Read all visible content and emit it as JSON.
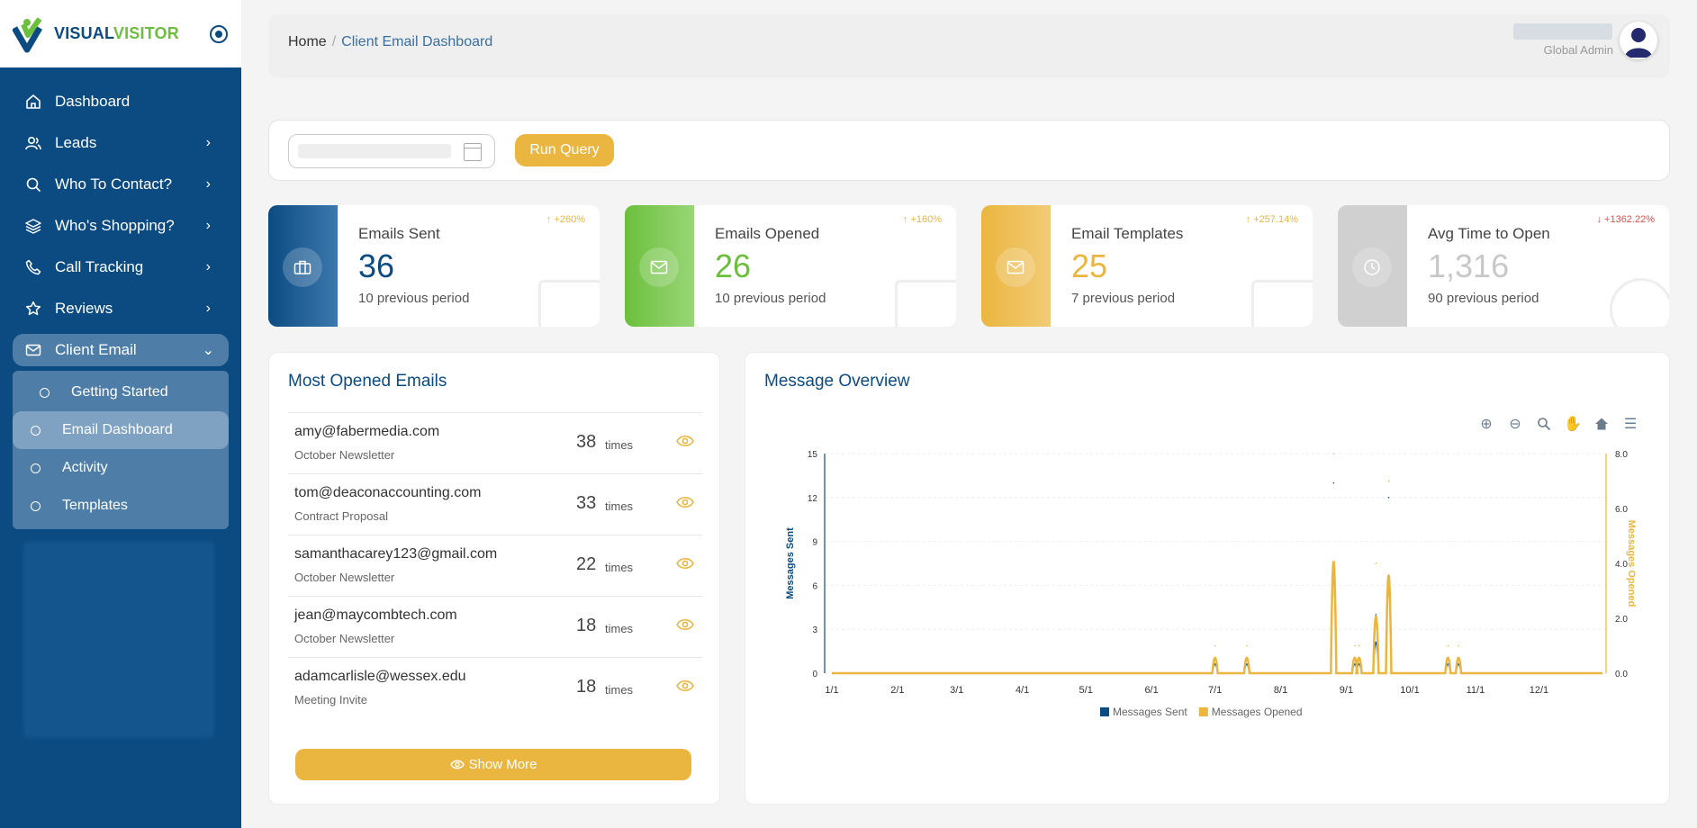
{
  "sidebar": {
    "logo": {
      "part1": "VISUAL",
      "part2": "VISITOR"
    },
    "items": [
      {
        "label": "Dashboard",
        "icon": "home-icon"
      },
      {
        "label": "Leads",
        "icon": "users-icon"
      },
      {
        "label": "Who To Contact?",
        "icon": "search-icon"
      },
      {
        "label": "Who's Shopping?",
        "icon": "layers-icon"
      },
      {
        "label": "Call Tracking",
        "icon": "phone-icon"
      },
      {
        "label": "Reviews",
        "icon": "star-icon"
      },
      {
        "label": "Client Email",
        "icon": "mail-icon"
      }
    ],
    "subitems": [
      {
        "label": "Getting Started"
      },
      {
        "label": "Email Dashboard"
      },
      {
        "label": "Activity"
      },
      {
        "label": "Templates"
      }
    ]
  },
  "header": {
    "breadcrumb_home": "Home",
    "breadcrumb_sep": "/",
    "breadcrumb_current": "Client Email Dashboard",
    "user_role": "Global Admin"
  },
  "query": {
    "run_label": "Run Query"
  },
  "stats": [
    {
      "label": "Emails Sent",
      "value": "36",
      "prev": "10 previous period",
      "delta": "+260%",
      "direction": "up"
    },
    {
      "label": "Emails Opened",
      "value": "26",
      "prev": "10 previous period",
      "delta": "+160%",
      "direction": "up"
    },
    {
      "label": "Email Templates",
      "value": "25",
      "prev": "7 previous period",
      "delta": "+257.14%",
      "direction": "up"
    },
    {
      "label": "Avg Time to Open",
      "value": "1,316",
      "prev": "90 previous period",
      "delta": "+1362.22%",
      "direction": "down"
    }
  ],
  "most_opened": {
    "title": "Most Opened Emails",
    "times_label": "times",
    "rows": [
      {
        "email": "amy@fabermedia.com",
        "subject": "October Newsletter",
        "count": "38"
      },
      {
        "email": "tom@deaconaccounting.com",
        "subject": "Contract Proposal",
        "count": "33"
      },
      {
        "email": "samanthacarey123@gmail.com",
        "subject": "October Newsletter",
        "count": "22"
      },
      {
        "email": "jean@maycombtech.com",
        "subject": "October Newsletter",
        "count": "18"
      },
      {
        "email": "adamcarlisle@wessex.edu",
        "subject": "Meeting Invite",
        "count": "18"
      }
    ],
    "show_more": "Show More"
  },
  "overview": {
    "title": "Message Overview"
  },
  "colors": {
    "primary": "#0b4b82",
    "green": "#6cbf3d",
    "gold": "#ebb63f",
    "red": "#e24c4c"
  },
  "chart_data": {
    "type": "line",
    "x_ticks": [
      "1/1",
      "2/1",
      "3/1",
      "4/1",
      "5/1",
      "6/1",
      "7/1",
      "8/1",
      "9/1",
      "10/1",
      "11/1",
      "12/1"
    ],
    "y_left_ticks": [
      "0",
      "3",
      "6",
      "9",
      "12",
      "15"
    ],
    "y_right_ticks": [
      "0.0",
      "2.0",
      "4.0",
      "6.0",
      "8.0"
    ],
    "ylabel_left": "Messages Sent",
    "ylabel_right": "Messages Opened",
    "ylim_left": [
      0,
      15
    ],
    "ylim_right": [
      0,
      8
    ],
    "legend_position": "bottom",
    "series": [
      {
        "name": "Messages Sent",
        "axis": "left",
        "color": "#0b4b82",
        "points": [
          [
            "7/1",
            1
          ],
          [
            "7/16",
            1
          ],
          [
            "8/26",
            13
          ],
          [
            "9/5",
            1
          ],
          [
            "9/7",
            1
          ],
          [
            "9/15",
            4
          ],
          [
            "9/21",
            12
          ],
          [
            "10/19",
            1
          ],
          [
            "10/24",
            1
          ]
        ]
      },
      {
        "name": "Messages Opened",
        "axis": "right",
        "color": "#ebb63f",
        "points": [
          [
            "7/1",
            1
          ],
          [
            "7/16",
            1
          ],
          [
            "8/26",
            8
          ],
          [
            "9/5",
            1
          ],
          [
            "9/7",
            1
          ],
          [
            "9/15",
            4
          ],
          [
            "9/21",
            7
          ],
          [
            "10/19",
            1
          ],
          [
            "10/24",
            1
          ]
        ]
      }
    ]
  }
}
